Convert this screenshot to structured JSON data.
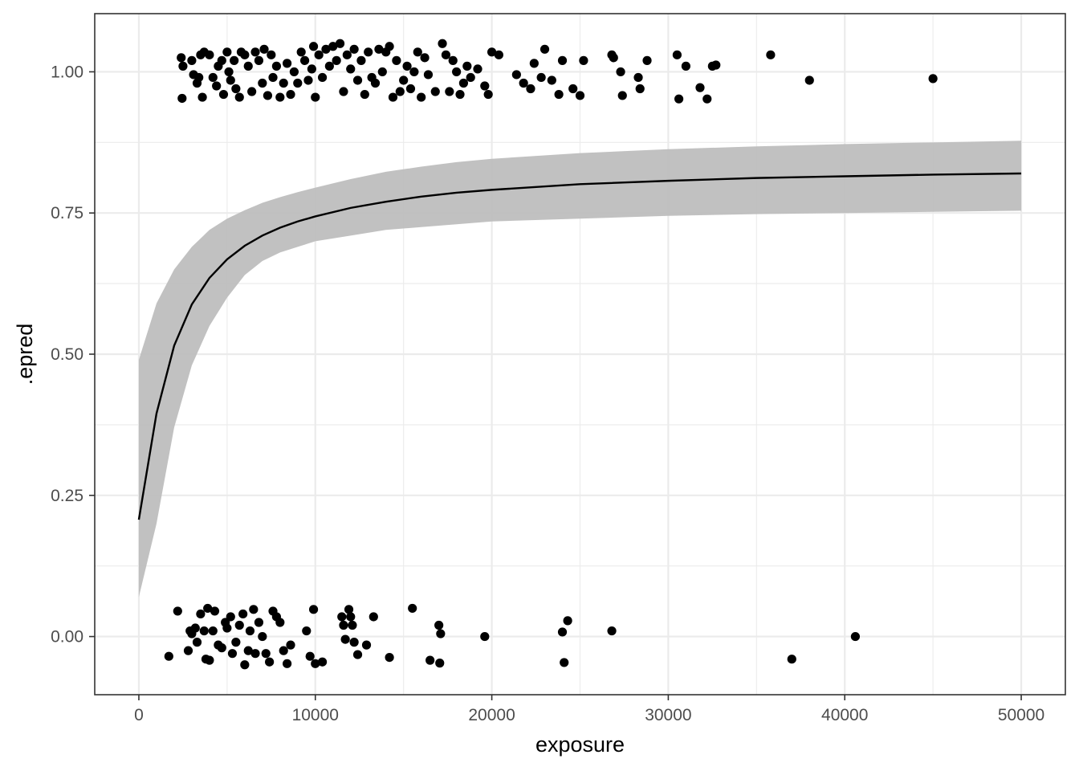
{
  "chart_data": {
    "type": "scatter",
    "title": "",
    "xlabel": "exposure",
    "ylabel": ".epred",
    "xlim": [
      -2500,
      52500
    ],
    "ylim": [
      -0.103,
      1.103
    ],
    "x_ticks": [
      0,
      10000,
      20000,
      30000,
      40000,
      50000
    ],
    "x_tick_labels": [
      "0",
      "10000",
      "20000",
      "30000",
      "40000",
      "50000"
    ],
    "y_ticks": [
      0,
      0.25,
      0.5,
      0.75,
      1
    ],
    "y_tick_labels": [
      "0.00",
      "0.25",
      "0.50",
      "0.75",
      "1.00"
    ],
    "grid": true,
    "legend": "none",
    "colors": {
      "points": "#000000",
      "line": "#000000",
      "ribbon": "#bebebe",
      "grid": "#ebebeb",
      "panel_border": "#333333"
    },
    "series": [
      {
        "kind": "ribbon",
        "x": [
          0,
          1000,
          2000,
          3000,
          4000,
          5000,
          6000,
          7000,
          8000,
          9000,
          10000,
          12000,
          14000,
          16000,
          18000,
          20000,
          25000,
          30000,
          35000,
          40000,
          45000,
          50000
        ],
        "lower": [
          0.07,
          0.2,
          0.37,
          0.48,
          0.55,
          0.6,
          0.64,
          0.665,
          0.68,
          0.69,
          0.7,
          0.71,
          0.72,
          0.725,
          0.73,
          0.735,
          0.74,
          0.745,
          0.748,
          0.75,
          0.752,
          0.754
        ],
        "upper": [
          0.49,
          0.59,
          0.65,
          0.69,
          0.72,
          0.74,
          0.755,
          0.768,
          0.778,
          0.787,
          0.795,
          0.81,
          0.823,
          0.832,
          0.84,
          0.846,
          0.856,
          0.863,
          0.868,
          0.872,
          0.875,
          0.878
        ]
      },
      {
        "kind": "line",
        "x": [
          0,
          1000,
          2000,
          3000,
          4000,
          5000,
          6000,
          7000,
          8000,
          9000,
          10000,
          12000,
          14000,
          16000,
          18000,
          20000,
          25000,
          30000,
          35000,
          40000,
          45000,
          50000
        ],
        "y": [
          0.207,
          0.395,
          0.515,
          0.588,
          0.635,
          0.668,
          0.692,
          0.71,
          0.724,
          0.735,
          0.744,
          0.759,
          0.77,
          0.779,
          0.786,
          0.791,
          0.801,
          0.807,
          0.812,
          0.815,
          0.818,
          0.82
        ]
      },
      {
        "kind": "points",
        "points": [
          [
            2400,
            1.025
          ],
          [
            2500,
            1.01
          ],
          [
            2450,
            0.953
          ],
          [
            3000,
            1.02
          ],
          [
            3100,
            0.995
          ],
          [
            3300,
            0.98
          ],
          [
            3500,
            1.03
          ],
          [
            3400,
            0.99
          ],
          [
            3600,
            0.955
          ],
          [
            3700,
            1.035
          ],
          [
            4000,
            1.03
          ],
          [
            4200,
            0.99
          ],
          [
            4500,
            1.01
          ],
          [
            4400,
            0.975
          ],
          [
            4700,
            1.02
          ],
          [
            4800,
            0.96
          ],
          [
            5000,
            1.035
          ],
          [
            5100,
            1.0
          ],
          [
            5200,
            0.985
          ],
          [
            5400,
            1.02
          ],
          [
            5500,
            0.97
          ],
          [
            5700,
            0.955
          ],
          [
            5800,
            1.035
          ],
          [
            6000,
            1.03
          ],
          [
            6200,
            1.01
          ],
          [
            6400,
            0.965
          ],
          [
            6600,
            1.035
          ],
          [
            6800,
            1.02
          ],
          [
            7000,
            0.98
          ],
          [
            7100,
            1.04
          ],
          [
            7300,
            0.958
          ],
          [
            7500,
            1.03
          ],
          [
            7600,
            0.99
          ],
          [
            7800,
            1.01
          ],
          [
            8000,
            0.955
          ],
          [
            8200,
            0.98
          ],
          [
            8400,
            1.015
          ],
          [
            8600,
            0.96
          ],
          [
            8800,
            1.0
          ],
          [
            9000,
            0.98
          ],
          [
            9200,
            1.035
          ],
          [
            9400,
            1.02
          ],
          [
            9600,
            0.985
          ],
          [
            9800,
            1.005
          ],
          [
            9900,
            1.045
          ],
          [
            10000,
            0.955
          ],
          [
            10200,
            1.03
          ],
          [
            10400,
            0.99
          ],
          [
            10600,
            1.04
          ],
          [
            10800,
            1.01
          ],
          [
            11000,
            1.045
          ],
          [
            11200,
            1.02
          ],
          [
            11400,
            1.05
          ],
          [
            11600,
            0.965
          ],
          [
            11800,
            1.03
          ],
          [
            12000,
            1.005
          ],
          [
            12200,
            1.04
          ],
          [
            12400,
            0.985
          ],
          [
            12600,
            1.02
          ],
          [
            12800,
            0.96
          ],
          [
            13000,
            1.035
          ],
          [
            13200,
            0.99
          ],
          [
            13400,
            0.98
          ],
          [
            13600,
            1.04
          ],
          [
            13800,
            1.0
          ],
          [
            14000,
            1.035
          ],
          [
            14200,
            1.045
          ],
          [
            14400,
            0.955
          ],
          [
            14600,
            1.02
          ],
          [
            14800,
            0.965
          ],
          [
            15000,
            0.985
          ],
          [
            15200,
            1.01
          ],
          [
            15400,
            0.97
          ],
          [
            15600,
            1.0
          ],
          [
            15800,
            1.035
          ],
          [
            16000,
            0.955
          ],
          [
            16200,
            1.025
          ],
          [
            16400,
            0.995
          ],
          [
            16800,
            0.965
          ],
          [
            17200,
            1.05
          ],
          [
            17400,
            1.03
          ],
          [
            17600,
            0.965
          ],
          [
            17800,
            1.02
          ],
          [
            18000,
            1.0
          ],
          [
            18200,
            0.96
          ],
          [
            18400,
            0.98
          ],
          [
            18600,
            1.01
          ],
          [
            18800,
            0.99
          ],
          [
            19200,
            1.005
          ],
          [
            19600,
            0.975
          ],
          [
            19800,
            0.96
          ],
          [
            20000,
            1.035
          ],
          [
            20400,
            1.03
          ],
          [
            21400,
            0.995
          ],
          [
            21800,
            0.98
          ],
          [
            22200,
            0.97
          ],
          [
            22400,
            1.015
          ],
          [
            22800,
            0.99
          ],
          [
            23000,
            1.04
          ],
          [
            23400,
            0.985
          ],
          [
            23800,
            0.96
          ],
          [
            24000,
            1.02
          ],
          [
            24600,
            0.97
          ],
          [
            25000,
            0.958
          ],
          [
            25200,
            1.02
          ],
          [
            26800,
            1.03
          ],
          [
            26900,
            1.025
          ],
          [
            27300,
            1.0
          ],
          [
            27400,
            0.958
          ],
          [
            28300,
            0.99
          ],
          [
            28400,
            0.97
          ],
          [
            28800,
            1.02
          ],
          [
            30500,
            1.03
          ],
          [
            30600,
            0.952
          ],
          [
            31000,
            1.01
          ],
          [
            31800,
            0.972
          ],
          [
            32200,
            0.952
          ],
          [
            32500,
            1.01
          ],
          [
            32700,
            1.012
          ],
          [
            35800,
            1.03
          ],
          [
            38000,
            0.985
          ],
          [
            45000,
            0.988
          ],
          [
            1700,
            -0.035
          ],
          [
            2200,
            0.045
          ],
          [
            2800,
            -0.025
          ],
          [
            2900,
            0.01
          ],
          [
            3000,
            0.005
          ],
          [
            3200,
            0.015
          ],
          [
            3300,
            -0.01
          ],
          [
            3500,
            0.04
          ],
          [
            3700,
            0.01
          ],
          [
            3800,
            -0.04
          ],
          [
            3900,
            0.05
          ],
          [
            4000,
            -0.042
          ],
          [
            4200,
            0.01
          ],
          [
            4300,
            0.045
          ],
          [
            4500,
            -0.015
          ],
          [
            4700,
            -0.02
          ],
          [
            4900,
            0.025
          ],
          [
            5000,
            0.015
          ],
          [
            5200,
            0.035
          ],
          [
            5300,
            -0.03
          ],
          [
            5500,
            -0.01
          ],
          [
            5700,
            0.02
          ],
          [
            5900,
            0.04
          ],
          [
            6000,
            -0.05
          ],
          [
            6200,
            -0.025
          ],
          [
            6300,
            0.01
          ],
          [
            6500,
            0.048
          ],
          [
            6600,
            -0.03
          ],
          [
            6800,
            0.025
          ],
          [
            7000,
            0.0
          ],
          [
            7200,
            -0.03
          ],
          [
            7400,
            -0.045
          ],
          [
            7600,
            0.045
          ],
          [
            7800,
            0.035
          ],
          [
            8000,
            0.025
          ],
          [
            8200,
            -0.025
          ],
          [
            8400,
            -0.048
          ],
          [
            8600,
            -0.015
          ],
          [
            9500,
            0.01
          ],
          [
            9700,
            -0.035
          ],
          [
            9900,
            0.048
          ],
          [
            10000,
            -0.048
          ],
          [
            10400,
            -0.045
          ],
          [
            11500,
            0.035
          ],
          [
            11600,
            0.02
          ],
          [
            11700,
            -0.005
          ],
          [
            11900,
            0.048
          ],
          [
            12000,
            0.035
          ],
          [
            12100,
            0.02
          ],
          [
            12200,
            -0.01
          ],
          [
            12400,
            -0.032
          ],
          [
            12900,
            -0.015
          ],
          [
            13300,
            0.035
          ],
          [
            14200,
            -0.037
          ],
          [
            15500,
            0.05
          ],
          [
            16500,
            -0.042
          ],
          [
            17000,
            0.02
          ],
          [
            17100,
            0.005
          ],
          [
            17050,
            -0.047
          ],
          [
            19600,
            0.0
          ],
          [
            24000,
            0.008
          ],
          [
            24100,
            -0.046
          ],
          [
            24300,
            0.028
          ],
          [
            26800,
            0.01
          ],
          [
            37000,
            -0.04
          ],
          [
            40600,
            0.0
          ]
        ]
      }
    ]
  }
}
